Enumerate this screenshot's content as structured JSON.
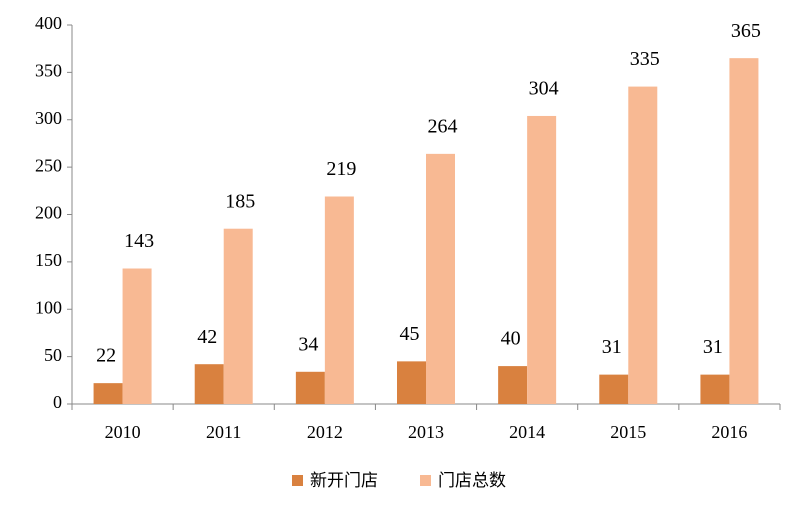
{
  "chart_data": {
    "type": "bar",
    "categories": [
      "2010",
      "2011",
      "2012",
      "2013",
      "2014",
      "2015",
      "2016"
    ],
    "series": [
      {
        "name": "新开门店",
        "color": "#d9813f",
        "values": [
          22,
          42,
          34,
          45,
          40,
          31,
          31
        ]
      },
      {
        "name": "门店总数",
        "color": "#f8b993",
        "values": [
          143,
          185,
          219,
          264,
          304,
          335,
          365
        ]
      }
    ],
    "ylim": [
      0,
      400
    ],
    "yticks": [
      0,
      50,
      100,
      150,
      200,
      250,
      300,
      350,
      400
    ],
    "grid": false,
    "legend": "bottom",
    "data_labels": true
  }
}
